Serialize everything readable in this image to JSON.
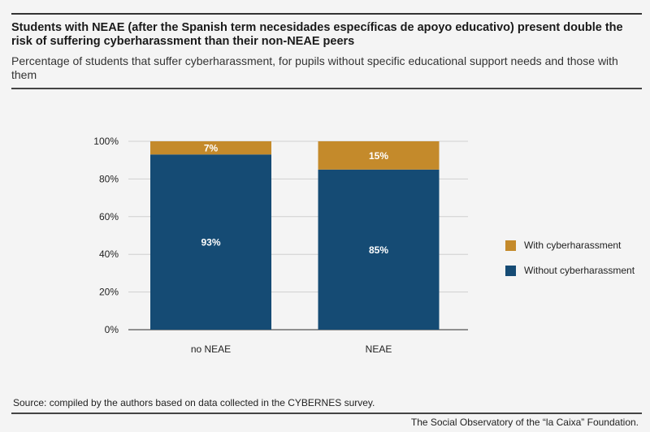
{
  "header": {
    "title": "Students with NEAE (after the Spanish term necesidades específicas de apoyo educativo) present double the risk of suffering cyberharassment than their non-NEAE peers",
    "subtitle": "Percentage of students that suffer cyberharassment, for pupils without specific educational support needs and those with them"
  },
  "chart_data": {
    "type": "bar",
    "stacked": true,
    "categories": [
      "no NEAE",
      "NEAE"
    ],
    "series": [
      {
        "name": "Without cyberharassment",
        "values": [
          93,
          85
        ],
        "color": "#154b74",
        "labels": [
          "93%",
          "85%"
        ]
      },
      {
        "name": "With cyberharassment",
        "values": [
          7,
          15
        ],
        "color": "#c48a2b",
        "labels": [
          "7%",
          "15%"
        ]
      }
    ],
    "yticks": [
      "0%",
      "20%",
      "40%",
      "60%",
      "80%",
      "100%"
    ],
    "ylim": [
      0,
      100
    ],
    "grid": true,
    "legend_position": "right"
  },
  "legend": {
    "items": [
      {
        "label": "With cyberharassment",
        "color": "#c48a2b"
      },
      {
        "label": "Without cyberharassment",
        "color": "#154b74"
      }
    ]
  },
  "footer": {
    "source": "Source: compiled by the authors based on data collected in the CYBERNES survey.",
    "credit": "The Social Observatory of the “la Caixa” Foundation."
  }
}
